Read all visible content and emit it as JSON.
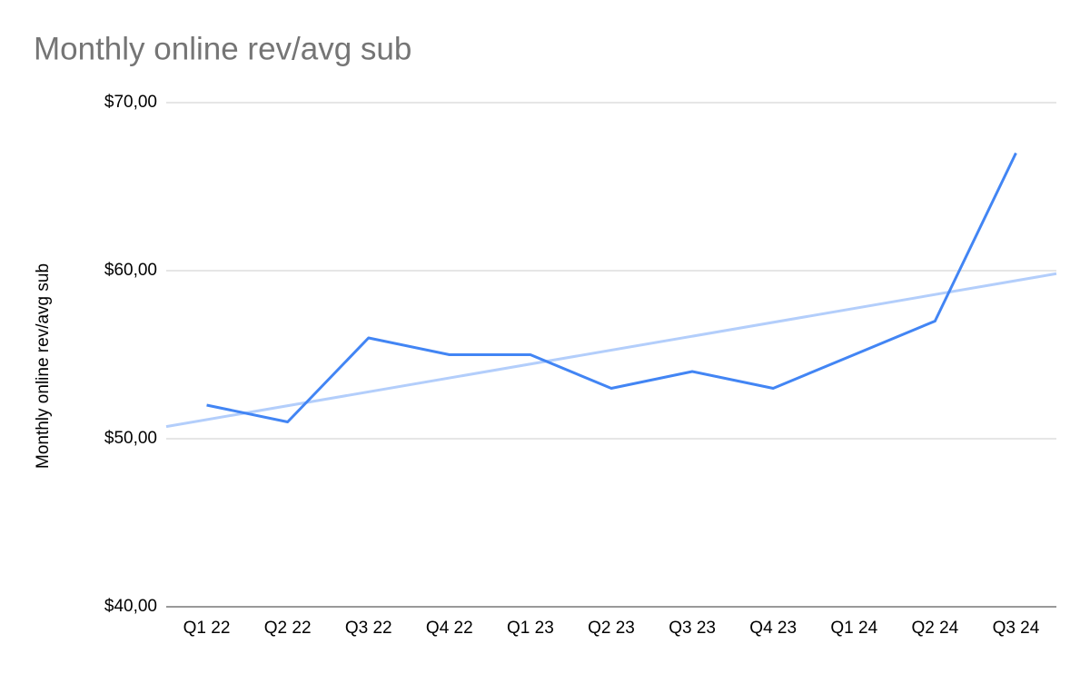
{
  "chart_data": {
    "type": "line",
    "title": "Monthly online rev/avg sub",
    "y_label": "Monthly online rev/avg sub",
    "categories": [
      "Q1 22",
      "Q2 22",
      "Q3 22",
      "Q4 22",
      "Q1 23",
      "Q2 23",
      "Q3 23",
      "Q4 23",
      "Q1 24",
      "Q2 24",
      "Q3 24"
    ],
    "values": [
      52,
      51,
      56,
      55,
      55,
      53,
      54,
      53,
      55,
      57,
      67
    ],
    "color": "#4285f4",
    "trendline": true,
    "trendline_color": "#b3cefb",
    "ylim": [
      40,
      70
    ],
    "yticks": [
      {
        "value": 40,
        "label": "$40,00"
      },
      {
        "value": 50,
        "label": "$50,00"
      },
      {
        "value": 60,
        "label": "$60,00"
      },
      {
        "value": 70,
        "label": "$70,00"
      }
    ],
    "grid": true
  }
}
